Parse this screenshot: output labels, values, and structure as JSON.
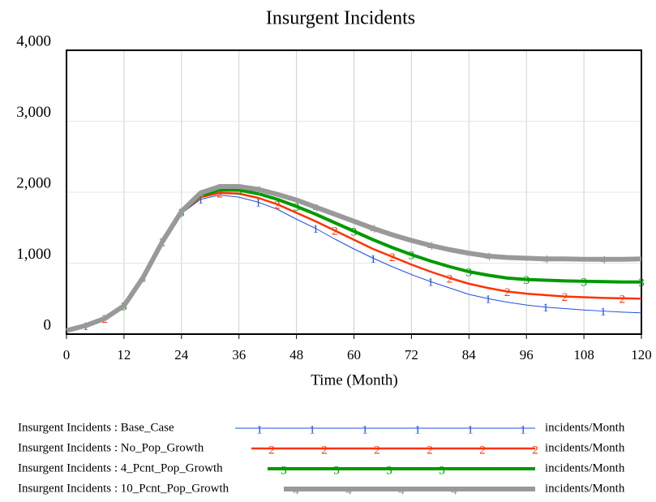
{
  "chart_data": {
    "type": "line",
    "title": "Insurgent Incidents",
    "x_label": "Time (Month)",
    "x": [
      0,
      4,
      8,
      12,
      16,
      20,
      24,
      28,
      32,
      36,
      40,
      44,
      48,
      52,
      56,
      60,
      64,
      68,
      72,
      76,
      80,
      84,
      88,
      92,
      96,
      100,
      104,
      108,
      112,
      116,
      120
    ],
    "xlim": [
      0,
      120
    ],
    "xticks": [
      0,
      12,
      24,
      36,
      48,
      60,
      72,
      84,
      96,
      108,
      120
    ],
    "ylim": [
      0,
      4000
    ],
    "yticks": [
      0,
      {
        "value": 1000,
        "label": "1,000"
      },
      {
        "value": 2000,
        "label": "2,000"
      },
      {
        "value": 3000,
        "label": "3,000"
      },
      {
        "value": 4000,
        "label": "4,000"
      }
    ],
    "grid": true,
    "series": [
      {
        "name": "Insurgent Incidents : Base_Case",
        "marker": "1",
        "units": "incidents/Month",
        "color": "#1f4fe0",
        "width": 1,
        "values": [
          50,
          120,
          220,
          400,
          800,
          1300,
          1700,
          1900,
          1960,
          1930,
          1860,
          1760,
          1620,
          1490,
          1340,
          1200,
          1070,
          950,
          840,
          740,
          650,
          560,
          500,
          450,
          410,
          380,
          360,
          340,
          325,
          310,
          300
        ]
      },
      {
        "name": "Insurgent Incidents : No_Pop_Growth",
        "marker": "2",
        "units": "incidents/Month",
        "color": "#ff3300",
        "width": 2.5,
        "values": [
          50,
          120,
          220,
          400,
          800,
          1300,
          1710,
          1930,
          1990,
          1980,
          1920,
          1830,
          1710,
          1590,
          1460,
          1330,
          1200,
          1090,
          980,
          880,
          790,
          710,
          650,
          600,
          570,
          550,
          530,
          520,
          510,
          505,
          500
        ]
      },
      {
        "name": "Insurgent Incidents : 4_Pcnt_Pop_Growth",
        "marker": "3",
        "units": "incidents/Month",
        "color": "#009900",
        "width": 4,
        "values": [
          50,
          120,
          220,
          400,
          800,
          1300,
          1720,
          1960,
          2030,
          2030,
          1980,
          1900,
          1800,
          1690,
          1570,
          1450,
          1330,
          1220,
          1120,
          1030,
          950,
          880,
          830,
          790,
          770,
          760,
          750,
          745,
          740,
          735,
          735
        ]
      },
      {
        "name": "Insurgent Incidents : 10_Pcnt_Pop_Growth",
        "marker": "4",
        "units": "incidents/Month",
        "color": "#999999",
        "width": 6,
        "values": [
          50,
          120,
          220,
          400,
          800,
          1300,
          1730,
          1990,
          2080,
          2080,
          2040,
          1970,
          1890,
          1790,
          1690,
          1590,
          1490,
          1400,
          1320,
          1250,
          1190,
          1140,
          1100,
          1080,
          1070,
          1060,
          1060,
          1055,
          1055,
          1055,
          1060
        ]
      }
    ]
  }
}
